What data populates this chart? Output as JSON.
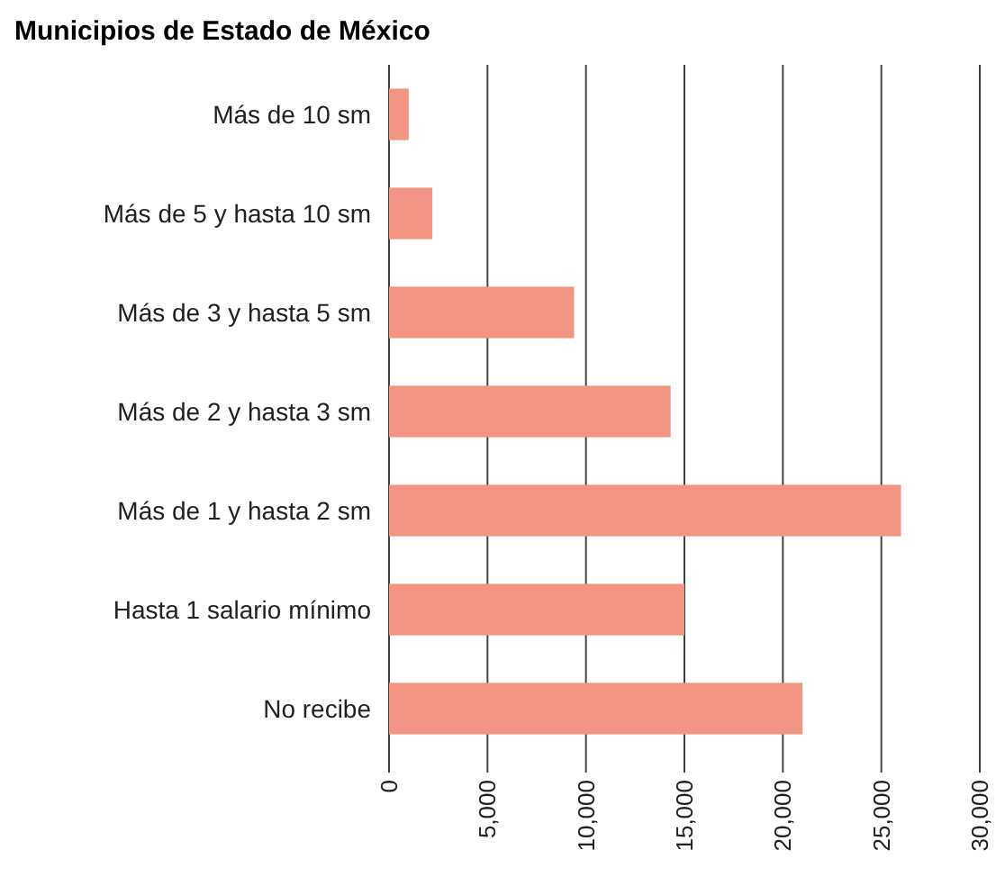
{
  "chart_data": {
    "type": "bar",
    "orientation": "horizontal",
    "title": "Municipios de Estado de México",
    "categories": [
      "Más de 10 sm",
      "Más de 5 y hasta 10 sm",
      "Más de 3 y hasta 5 sm",
      "Más de 2 y hasta 3 sm",
      "Más de 1 y hasta 2 sm",
      "Hasta 1 salario mínimo",
      "No recibe"
    ],
    "values": [
      1000,
      2200,
      9400,
      14300,
      26000,
      15000,
      21000
    ],
    "color": "#f29583",
    "xlim": [
      0,
      30000
    ],
    "xticks": [
      {
        "value": 0,
        "label": "0"
      },
      {
        "value": 5000,
        "label": "5,000"
      },
      {
        "value": 10000,
        "label": "10,000"
      },
      {
        "value": 15000,
        "label": "15,000"
      },
      {
        "value": 20000,
        "label": "20,000"
      },
      {
        "value": 25000,
        "label": "25,000"
      },
      {
        "value": 30000,
        "label": "30,000"
      }
    ],
    "grid": "x"
  }
}
